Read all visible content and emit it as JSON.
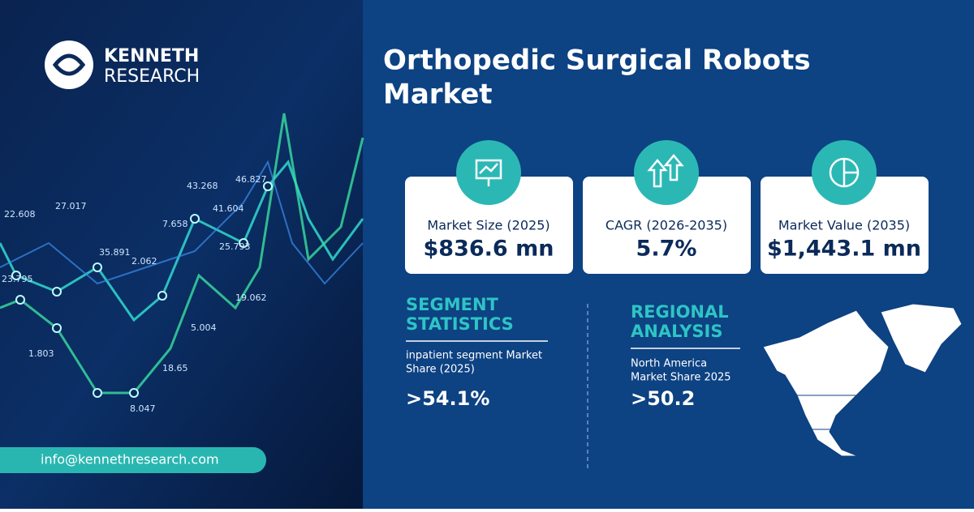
{
  "logo": {
    "line1": "KENNETH",
    "line2": "RESEARCH"
  },
  "title": {
    "line1": "Orthopedic Surgical Robots",
    "line2": "Market"
  },
  "cards": [
    {
      "label": "Market Size (2025)",
      "value": "$836.6 mn"
    },
    {
      "label": "CAGR (2026-2035)",
      "value": "5.7%"
    },
    {
      "label": "Market Value  (2035)",
      "value": "$1,443.1 mn"
    }
  ],
  "segment": {
    "heading1": "SEGMENT",
    "heading2": "STATISTICS",
    "text1": "inpatient segment Market",
    "text2": "Share (2025)",
    "value": ">54.1%"
  },
  "regional": {
    "heading1": "REGIONAL",
    "heading2": "ANALYSIS",
    "text1": "North America",
    "text2": "Market Share 2025",
    "value": ">50.2"
  },
  "contact": "info@kennethresearch.com",
  "background_labels": [
    "22.608",
    "27.017",
    "23.795",
    "35.891",
    "2.062",
    "7.658",
    "43.268",
    "46.827",
    "41.604",
    "25.793",
    "1.803",
    "5.004",
    "18.65",
    "8.047",
    "19.062"
  ]
}
